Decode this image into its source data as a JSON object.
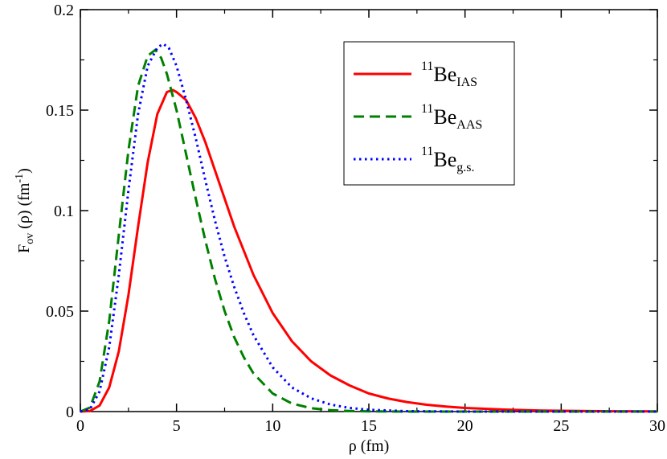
{
  "chart_data": {
    "type": "line",
    "xlabel": "ρ (fm)",
    "ylabel": {
      "base": "F",
      "sub": "ov",
      "mid": "(ρ) (fm",
      "sup": "-1",
      "end": ")"
    },
    "xlim": [
      0,
      30
    ],
    "ylim": [
      0,
      0.2
    ],
    "x_ticks": [
      0,
      5,
      10,
      15,
      20,
      25,
      30
    ],
    "x_tick_labels": [
      "0",
      "5",
      "10",
      "15",
      "20",
      "25",
      "30"
    ],
    "y_ticks": [
      0,
      0.05,
      0.1,
      0.15,
      0.2
    ],
    "y_tick_labels": [
      "0",
      "0.05",
      "0.1",
      "0.15",
      "0.2"
    ],
    "grid": false,
    "legend_position": "top-right",
    "series": [
      {
        "name": "11Be_IAS",
        "legend": {
          "sup": "11",
          "base": "Be",
          "sub": "IAS"
        },
        "color": "#ff0000",
        "style": "solid",
        "points": [
          [
            0,
            0
          ],
          [
            0.5,
            0.0003
          ],
          [
            1,
            0.003
          ],
          [
            1.5,
            0.012
          ],
          [
            2,
            0.03
          ],
          [
            2.5,
            0.058
          ],
          [
            3,
            0.092
          ],
          [
            3.5,
            0.124
          ],
          [
            4,
            0.148
          ],
          [
            4.5,
            0.159
          ],
          [
            4.8,
            0.16
          ],
          [
            5,
            0.159
          ],
          [
            5.5,
            0.155
          ],
          [
            6,
            0.146
          ],
          [
            6.5,
            0.134
          ],
          [
            7,
            0.12
          ],
          [
            7.5,
            0.106
          ],
          [
            8,
            0.092
          ],
          [
            9,
            0.068
          ],
          [
            10,
            0.049
          ],
          [
            11,
            0.035
          ],
          [
            12,
            0.025
          ],
          [
            13,
            0.018
          ],
          [
            14,
            0.013
          ],
          [
            15,
            0.009
          ],
          [
            16,
            0.0065
          ],
          [
            17,
            0.0047
          ],
          [
            18,
            0.0034
          ],
          [
            19,
            0.0025
          ],
          [
            20,
            0.0018
          ],
          [
            22,
            0.001
          ],
          [
            24,
            0.0005
          ],
          [
            26,
            0.0003
          ],
          [
            28,
            0.00015
          ],
          [
            30,
            0.0001
          ]
        ]
      },
      {
        "name": "11Be_AAS",
        "legend": {
          "sup": "11",
          "base": "Be",
          "sub": "AAS"
        },
        "color": "#008000",
        "style": "dashed",
        "points": [
          [
            0,
            0
          ],
          [
            0.5,
            0.002
          ],
          [
            1,
            0.015
          ],
          [
            1.5,
            0.045
          ],
          [
            2,
            0.088
          ],
          [
            2.5,
            0.13
          ],
          [
            3,
            0.162
          ],
          [
            3.5,
            0.177
          ],
          [
            3.9,
            0.18
          ],
          [
            4.2,
            0.176
          ],
          [
            4.5,
            0.168
          ],
          [
            5,
            0.15
          ],
          [
            5.5,
            0.128
          ],
          [
            6,
            0.106
          ],
          [
            6.5,
            0.085
          ],
          [
            7,
            0.066
          ],
          [
            7.5,
            0.05
          ],
          [
            8,
            0.037
          ],
          [
            8.5,
            0.027
          ],
          [
            9,
            0.019
          ],
          [
            10,
            0.009
          ],
          [
            11,
            0.004
          ],
          [
            12,
            0.0017
          ],
          [
            13,
            0.0007
          ],
          [
            14,
            0.0003
          ],
          [
            15,
            0.0001
          ],
          [
            17,
            0
          ],
          [
            20,
            0
          ],
          [
            25,
            0
          ],
          [
            30,
            0
          ]
        ]
      },
      {
        "name": "11Be_g.s.",
        "legend": {
          "sup": "11",
          "base": "Be",
          "sub": "g.s."
        },
        "color": "#0000ff",
        "style": "dotted",
        "points": [
          [
            0,
            0
          ],
          [
            0.5,
            0.0012
          ],
          [
            1,
            0.01
          ],
          [
            1.5,
            0.032
          ],
          [
            2,
            0.068
          ],
          [
            2.5,
            0.11
          ],
          [
            3,
            0.148
          ],
          [
            3.5,
            0.172
          ],
          [
            4,
            0.181
          ],
          [
            4.3,
            0.183
          ],
          [
            4.6,
            0.181
          ],
          [
            5,
            0.172
          ],
          [
            5.5,
            0.155
          ],
          [
            6,
            0.136
          ],
          [
            6.5,
            0.115
          ],
          [
            7,
            0.095
          ],
          [
            7.5,
            0.077
          ],
          [
            8,
            0.062
          ],
          [
            8.5,
            0.049
          ],
          [
            9,
            0.038
          ],
          [
            10,
            0.022
          ],
          [
            11,
            0.012
          ],
          [
            12,
            0.0066
          ],
          [
            13,
            0.0035
          ],
          [
            14,
            0.0018
          ],
          [
            15,
            0.0009
          ],
          [
            17,
            0.0002
          ],
          [
            20,
            0
          ],
          [
            25,
            0
          ],
          [
            30,
            0
          ]
        ]
      }
    ]
  }
}
